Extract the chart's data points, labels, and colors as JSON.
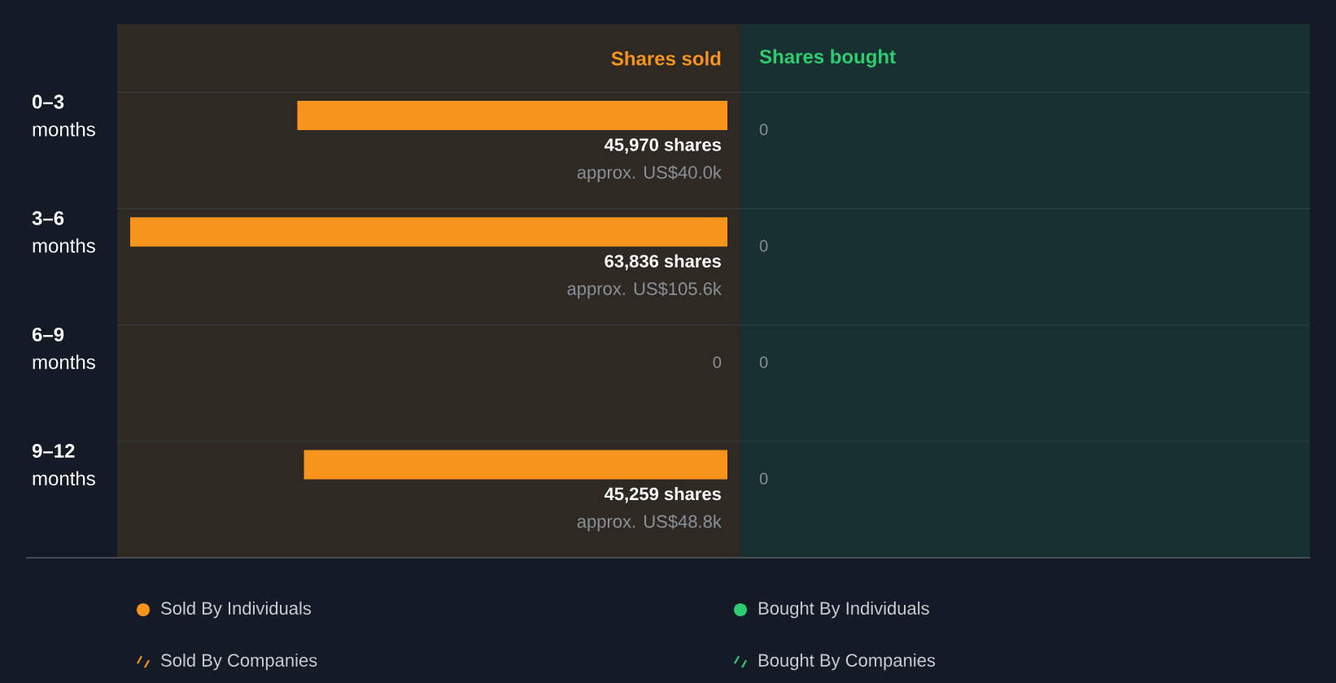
{
  "chart_data": {
    "type": "bar",
    "orientation": "horizontal",
    "xlabel": "Shares sold",
    "x2label": "Shares bought",
    "categories": [
      "**0–3** months",
      "**3–6** months",
      "**6–9** months",
      "**9–12** months"
    ],
    "tick_labels": "y",
    "legend": "bottom",
    "series": [
      {
        "name": "Sold By Individuals",
        "color": "#f7941d",
        "values": [
          45970,
          63836,
          0,
          45259
        ],
        "value_labels": [
          "45,970 shares",
          "63,836 shares",
          "0",
          "45,259 shares"
        ]
      },
      {
        "name": "Bought By Individuals",
        "color": "#2ecc71",
        "values": [
          0,
          0,
          0,
          0
        ],
        "value_labels": [
          "0",
          "0",
          "0",
          "0"
        ]
      },
      {
        "name": "Sold By Companies",
        "color": "#f7941d",
        "values": [
          null,
          null,
          null,
          null
        ]
      },
      {
        "name": "Bought By Companies",
        "color": "#2ecc71",
        "values": [
          null,
          null,
          null,
          null
        ]
      }
    ],
    "annotations": [
      "approx. US$40.0k",
      "approx. US$105.6k",
      "approx. US$48.8k"
    ]
  }
}
